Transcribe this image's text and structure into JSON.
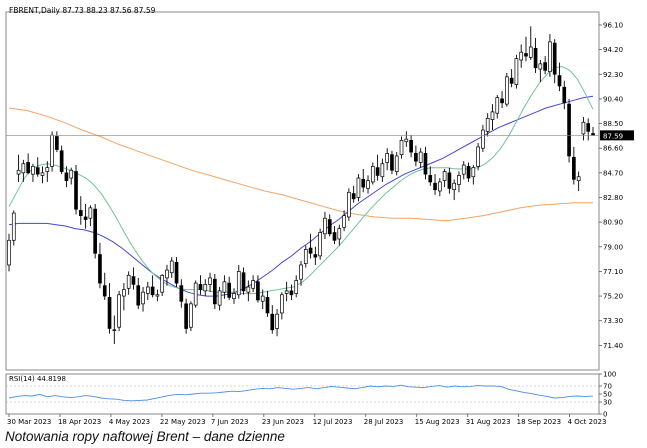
{
  "caption": "Notowania ropy naftowej Brent – dane dzienne",
  "chart_data": [
    {
      "type": "candlestick",
      "header": "FBRENT,Daily  87.73 88.23 87.56 87.59",
      "last_price_label": "87.59",
      "ylim": [
        69.5,
        97.1
      ],
      "y_ticks": [
        "96.10",
        "94.20",
        "92.30",
        "90.40",
        "88.50",
        "86.60",
        "84.70",
        "82.80",
        "80.90",
        "79.00",
        "77.10",
        "75.20",
        "73.30",
        "71.40"
      ],
      "x_ticks": [
        "30 Mar 2023",
        "18 Apr 2023",
        "4 May 2023",
        "22 May 2023",
        "7 Jun 2023",
        "23 Jun 2023",
        "12 Jul 2023",
        "28 Jul 2023",
        "15 Aug 2023",
        "31 Aug 2023",
        "18 Sep 2023",
        "4 Oct 2023"
      ],
      "colors": {
        "bull": "#ffffff",
        "bear": "#000000",
        "wick": "#000000",
        "ma_fast": "#6fc49a",
        "ma_mid": "#4646d2",
        "ma_slow": "#f0a468",
        "price_line": "#888888"
      },
      "ohlc": [
        [
          77.6,
          80.0,
          77.1,
          79.5
        ],
        [
          79.5,
          81.8,
          79.1,
          81.6
        ],
        [
          84.6,
          86.1,
          84.0,
          84.9
        ],
        [
          84.7,
          85.7,
          84.0,
          85.4
        ],
        [
          85.5,
          86.2,
          84.6,
          84.7
        ],
        [
          84.6,
          85.4,
          84.0,
          85.2
        ],
        [
          85.1,
          85.9,
          84.4,
          84.6
        ],
        [
          84.5,
          85.2,
          83.9,
          84.7
        ],
        [
          84.8,
          85.6,
          84.0,
          85.1
        ],
        [
          85.2,
          87.9,
          84.8,
          87.6
        ],
        [
          87.5,
          87.9,
          86.3,
          86.5
        ],
        [
          86.4,
          86.8,
          84.6,
          84.8
        ],
        [
          84.7,
          85.2,
          83.6,
          84.1
        ],
        [
          84.3,
          85.1,
          83.8,
          84.9
        ],
        [
          84.8,
          85.3,
          81.5,
          81.9
        ],
        [
          81.8,
          82.9,
          80.7,
          81.4
        ],
        [
          81.3,
          82.3,
          80.4,
          81.1
        ],
        [
          81.2,
          82.2,
          80.6,
          82.0
        ],
        [
          81.9,
          82.3,
          78.1,
          78.5
        ],
        [
          78.4,
          79.3,
          75.8,
          76.2
        ],
        [
          76.0,
          77.0,
          74.9,
          75.2
        ],
        [
          75.1,
          76.2,
          72.3,
          72.7
        ],
        [
          72.6,
          73.7,
          71.5,
          72.6
        ],
        [
          72.8,
          75.6,
          72.5,
          75.3
        ],
        [
          75.2,
          76.2,
          74.1,
          75.7
        ],
        [
          75.8,
          77.1,
          75.3,
          76.8
        ],
        [
          76.7,
          77.4,
          75.7,
          76.1
        ],
        [
          76.0,
          76.6,
          74.2,
          74.5
        ],
        [
          74.6,
          75.9,
          74.0,
          75.5
        ],
        [
          75.4,
          76.3,
          74.9,
          75.9
        ],
        [
          75.9,
          76.8,
          75.1,
          75.3
        ],
        [
          75.2,
          75.7,
          74.8,
          75.3
        ],
        [
          75.5,
          76.9,
          75.2,
          76.8
        ],
        [
          76.6,
          77.6,
          76.0,
          77.2
        ],
        [
          77.0,
          78.2,
          76.6,
          77.9
        ],
        [
          77.8,
          78.2,
          75.9,
          76.2
        ],
        [
          76.0,
          76.5,
          74.3,
          74.8
        ],
        [
          74.6,
          75.0,
          72.3,
          72.7
        ],
        [
          72.8,
          74.8,
          72.5,
          74.6
        ],
        [
          74.5,
          76.4,
          74.3,
          76.2
        ],
        [
          76.1,
          76.8,
          75.3,
          75.7
        ],
        [
          75.6,
          76.5,
          75.2,
          76.1
        ],
        [
          76.1,
          77.0,
          75.5,
          76.6
        ],
        [
          76.5,
          76.9,
          74.2,
          74.6
        ],
        [
          74.5,
          75.9,
          74.1,
          75.6
        ],
        [
          75.5,
          76.8,
          75.0,
          76.3
        ],
        [
          76.2,
          76.7,
          74.9,
          75.1
        ],
        [
          75.0,
          75.8,
          74.6,
          75.4
        ],
        [
          75.3,
          77.6,
          75.0,
          77.1
        ],
        [
          77.0,
          77.4,
          75.3,
          75.6
        ],
        [
          75.5,
          76.4,
          74.8,
          75.9
        ],
        [
          75.8,
          76.8,
          75.5,
          76.4
        ],
        [
          76.3,
          76.8,
          74.7,
          74.9
        ],
        [
          74.8,
          75.7,
          74.2,
          75.2
        ],
        [
          75.1,
          75.6,
          73.6,
          73.9
        ],
        [
          73.8,
          74.5,
          72.3,
          72.6
        ],
        [
          72.7,
          74.2,
          72.1,
          73.8
        ],
        [
          73.9,
          75.5,
          73.4,
          75.3
        ],
        [
          75.4,
          76.3,
          74.8,
          75.6
        ],
        [
          75.6,
          76.1,
          74.9,
          75.3
        ],
        [
          75.4,
          76.8,
          75.1,
          76.4
        ],
        [
          76.5,
          77.9,
          76.0,
          77.6
        ],
        [
          77.7,
          79.1,
          77.4,
          78.8
        ],
        [
          78.9,
          80.0,
          78.1,
          78.5
        ],
        [
          78.4,
          79.0,
          77.6,
          78.2
        ],
        [
          78.3,
          80.4,
          78.0,
          80.1
        ],
        [
          80.0,
          81.7,
          79.6,
          81.2
        ],
        [
          81.1,
          81.5,
          79.8,
          80.0
        ],
        [
          80.1,
          80.6,
          79.2,
          79.5
        ],
        [
          79.6,
          80.7,
          79.1,
          80.4
        ],
        [
          80.5,
          81.8,
          80.2,
          81.4
        ],
        [
          81.3,
          83.5,
          81.0,
          83.2
        ],
        [
          83.1,
          83.7,
          82.4,
          82.7
        ],
        [
          82.8,
          84.6,
          82.5,
          84.3
        ],
        [
          84.2,
          85.0,
          83.2,
          83.6
        ],
        [
          83.5,
          84.5,
          83.1,
          84.1
        ],
        [
          84.0,
          85.5,
          83.8,
          85.2
        ],
        [
          85.1,
          86.1,
          84.1,
          84.5
        ],
        [
          84.4,
          85.8,
          84.0,
          85.4
        ],
        [
          85.5,
          86.6,
          84.9,
          86.2
        ],
        [
          86.1,
          86.4,
          84.6,
          84.9
        ],
        [
          84.8,
          86.3,
          84.5,
          86.0
        ],
        [
          86.1,
          87.5,
          85.8,
          87.2
        ],
        [
          87.1,
          87.9,
          86.7,
          87.3
        ],
        [
          87.2,
          87.6,
          85.9,
          86.3
        ],
        [
          86.2,
          86.8,
          85.2,
          85.6
        ],
        [
          85.5,
          86.6,
          85.1,
          86.3
        ],
        [
          86.2,
          86.7,
          84.2,
          84.6
        ],
        [
          84.5,
          85.2,
          83.7,
          84.0
        ],
        [
          83.9,
          84.6,
          83.0,
          83.4
        ],
        [
          83.3,
          84.3,
          82.9,
          84.0
        ],
        [
          84.1,
          85.0,
          83.6,
          84.8
        ],
        [
          84.7,
          85.1,
          83.1,
          83.5
        ],
        [
          83.4,
          84.2,
          82.6,
          83.9
        ],
        [
          83.8,
          84.8,
          83.2,
          84.5
        ],
        [
          84.6,
          85.6,
          84.2,
          85.3
        ],
        [
          85.2,
          85.5,
          84.0,
          84.3
        ],
        [
          84.4,
          85.3,
          83.8,
          85.1
        ],
        [
          85.2,
          87.0,
          84.9,
          86.7
        ],
        [
          86.6,
          88.4,
          86.3,
          88.0
        ],
        [
          87.9,
          89.3,
          87.5,
          88.9
        ],
        [
          88.8,
          90.0,
          88.0,
          89.4
        ],
        [
          89.3,
          90.7,
          88.9,
          90.5
        ],
        [
          90.4,
          91.0,
          89.7,
          90.1
        ],
        [
          90.0,
          92.4,
          89.8,
          92.1
        ],
        [
          92.0,
          92.7,
          91.3,
          91.6
        ],
        [
          91.5,
          93.8,
          91.2,
          93.5
        ],
        [
          93.4,
          94.6,
          92.8,
          94.0
        ],
        [
          93.9,
          95.2,
          93.3,
          93.7
        ],
        [
          93.6,
          96.0,
          93.4,
          94.4
        ],
        [
          94.3,
          95.1,
          92.4,
          92.8
        ],
        [
          92.7,
          93.4,
          91.7,
          93.1
        ],
        [
          93.2,
          93.7,
          92.3,
          92.6
        ],
        [
          92.5,
          95.4,
          92.1,
          94.8
        ],
        [
          94.7,
          95.0,
          91.6,
          92.3
        ],
        [
          92.2,
          93.2,
          91.0,
          91.4
        ],
        [
          91.3,
          91.8,
          89.6,
          90.1
        ],
        [
          90.0,
          90.4,
          85.5,
          86.0
        ],
        [
          85.9,
          86.7,
          83.8,
          84.2
        ],
        [
          84.1,
          84.8,
          83.3,
          84.4
        ],
        [
          87.7,
          89.0,
          87.2,
          88.6
        ],
        [
          88.5,
          88.9,
          87.2,
          87.9
        ],
        [
          87.73,
          88.23,
          87.56,
          87.59
        ]
      ],
      "ma_fast": [
        82.1,
        83.2,
        84.3,
        85.0,
        85.3,
        85.4,
        85.3,
        85.1,
        84.9,
        84.6,
        84.3,
        83.8,
        83.1,
        82.2,
        81.2,
        80.1,
        79.1,
        78.2,
        77.4,
        76.8,
        76.3,
        76.0,
        75.8,
        75.7,
        75.7,
        75.7,
        75.6,
        75.5,
        75.5,
        75.5,
        75.4,
        75.4,
        75.4,
        75.5,
        75.6,
        75.7,
        75.8,
        75.9,
        76.2,
        76.7,
        77.3,
        77.9,
        78.5,
        79.1,
        79.8,
        80.5,
        81.2,
        81.9,
        82.5,
        83.1,
        83.6,
        84.1,
        84.5,
        84.8,
        85.0,
        85.1,
        85.1,
        85.1,
        85.0,
        85.0,
        85.0,
        85.1,
        85.4,
        85.9,
        86.6,
        87.5,
        88.6,
        89.7,
        90.7,
        91.6,
        92.3,
        92.8,
        92.9,
        92.6,
        91.9,
        90.8,
        89.6
      ],
      "ma_mid": [
        80.7,
        80.8,
        80.8,
        80.8,
        80.8,
        80.7,
        80.6,
        80.4,
        80.3,
        80.1,
        79.8,
        79.4,
        78.9,
        78.3,
        77.7,
        77.1,
        76.6,
        76.2,
        75.8,
        75.5,
        75.3,
        75.2,
        75.2,
        75.3,
        75.5,
        75.8,
        76.2,
        76.7,
        77.2,
        77.8,
        78.3,
        78.9,
        79.4,
        80.0,
        80.6,
        81.1,
        81.7,
        82.3,
        82.8,
        83.3,
        83.8,
        84.2,
        84.6,
        84.9,
        85.2,
        85.5,
        85.8,
        86.2,
        86.6,
        87.0,
        87.4,
        87.8,
        88.2,
        88.5,
        88.8,
        89.1,
        89.4,
        89.7,
        89.9,
        90.1,
        90.3,
        90.5,
        90.6
      ],
      "ma_slow": [
        89.7,
        89.5,
        89.1,
        88.6,
        88.0,
        87.5,
        86.9,
        86.4,
        85.9,
        85.4,
        84.9,
        84.5,
        84.1,
        83.7,
        83.3,
        83.0,
        82.6,
        82.2,
        81.8,
        81.5,
        81.3,
        81.2,
        81.2,
        81.1,
        81.0,
        81.2,
        81.4,
        81.7,
        82.0,
        82.2,
        82.3,
        82.4,
        82.4
      ],
      "rsi": {
        "label": "RSI(14) 44.8198",
        "ylim": [
          0,
          100
        ],
        "y_ticks": [
          "100",
          "70",
          "50",
          "30",
          "0"
        ],
        "values": [
          40,
          44,
          46,
          45,
          49,
          43,
          46,
          43,
          41,
          43,
          46,
          44,
          40,
          38,
          37,
          34,
          33,
          34,
          35,
          39,
          43,
          47,
          49,
          48,
          50,
          52,
          52,
          53,
          55,
          57,
          56,
          59,
          62,
          64,
          63,
          66,
          64,
          62,
          64,
          66,
          63,
          66,
          69,
          67,
          65,
          63,
          66,
          70,
          68,
          70,
          69,
          72,
          68,
          67,
          66,
          69,
          71,
          67,
          70,
          68,
          69,
          71,
          70,
          70,
          69,
          62,
          58,
          54,
          51,
          47,
          44,
          40,
          41,
          44,
          45,
          44,
          44.8
        ]
      }
    }
  ]
}
